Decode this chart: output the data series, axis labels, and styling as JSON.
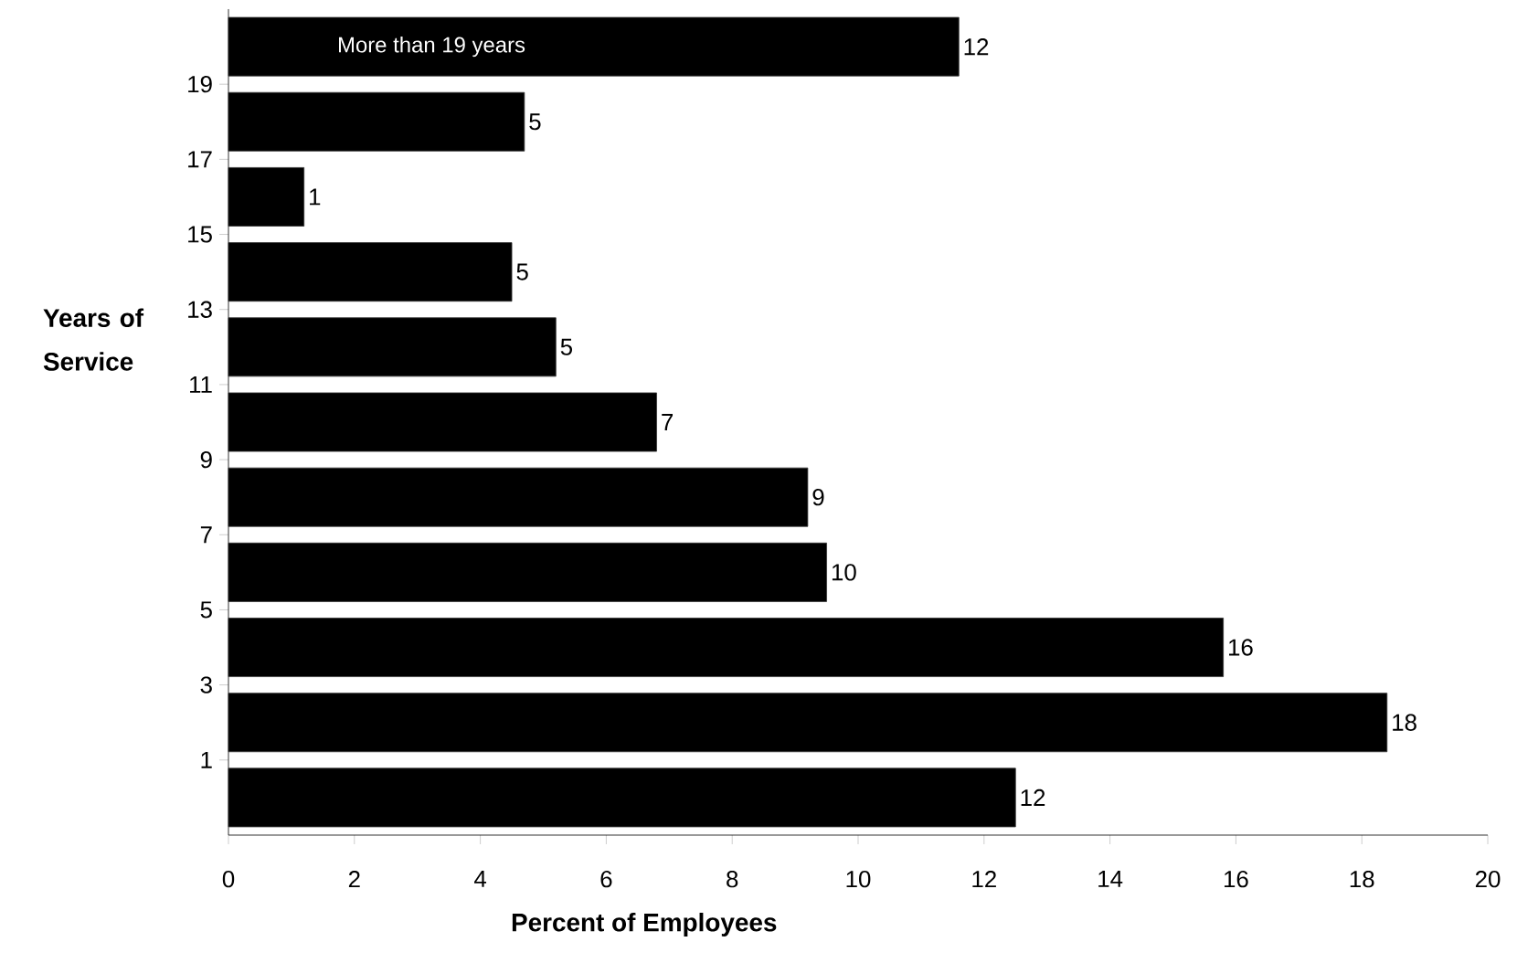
{
  "chart_data": {
    "type": "bar",
    "orientation": "horizontal",
    "xlabel": "Percent of Employees",
    "ylabel": "Years of Service",
    "x": [
      0,
      2,
      4,
      6,
      8,
      10,
      12,
      14,
      16,
      18,
      20
    ],
    "values": [
      12.5,
      18.4,
      15.8,
      9.5,
      9.2,
      6.8,
      5.2,
      4.5,
      1.2,
      4.7,
      11.6
    ],
    "value_labels": [
      "12",
      "18",
      "16",
      "10",
      "9",
      "7",
      "5",
      "5",
      "1",
      "5",
      "12"
    ],
    "color": "#000000",
    "xlim": [
      0,
      20
    ],
    "xticks": [
      0,
      2,
      4,
      6,
      8,
      10,
      12,
      14,
      16,
      18,
      20
    ],
    "ylim": [
      -1,
      21
    ],
    "yticks": [
      1,
      3,
      5,
      7,
      9,
      11,
      13,
      15,
      17,
      19
    ],
    "annotations": [
      "More than 19 years"
    ]
  }
}
